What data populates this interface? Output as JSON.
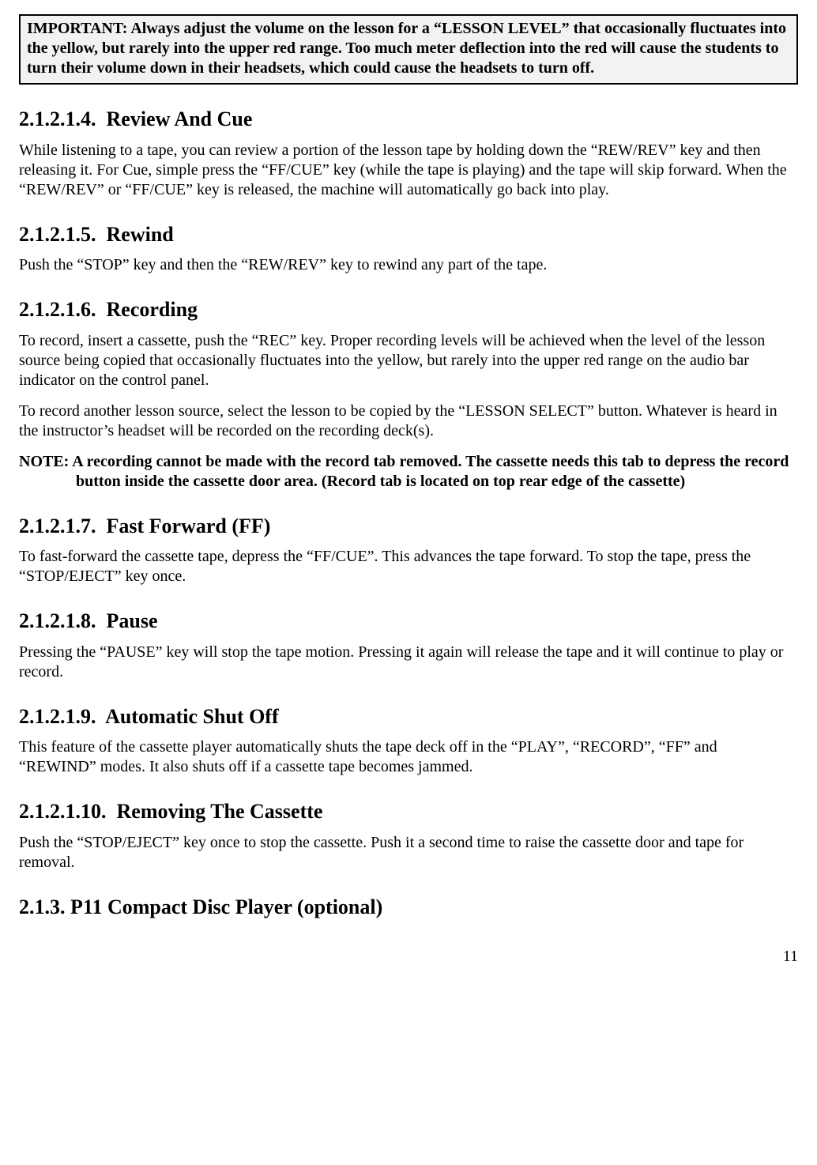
{
  "important_box": "IMPORTANT: Always adjust the volume on the lesson for a “LESSON LEVEL” that occasionally fluctuates into the yellow, but rarely into the upper red range. Too much meter deflection into the red will cause the students to turn their volume down in their headsets, which could cause the headsets to turn off.",
  "sections": {
    "review_cue": {
      "title": "2.1.2.1.4.  Review And Cue",
      "p1": "While listening to a tape, you can review a portion of the lesson tape by holding down the “REW/REV” key and then releasing it. For Cue, simple press the “FF/CUE” key (while the tape is playing) and the tape will skip forward. When the “REW/REV” or “FF/CUE” key is released, the machine will automatically go back into play."
    },
    "rewind": {
      "title": "2.1.2.1.5.  Rewind",
      "p1": "Push the “STOP” key and then the “REW/REV” key to rewind any part of the tape."
    },
    "recording": {
      "title": "2.1.2.1.6.  Recording",
      "p1": "To record, insert a cassette, push the “REC” key. Proper recording levels will be achieved when the level of the lesson source being copied that occasionally fluctuates into the yellow, but rarely into the upper red range on the audio bar indicator on the control panel.",
      "p2": "To record another lesson source, select the lesson to be copied by the “LESSON SELECT” button. Whatever is heard in the instructor’s headset will be recorded on the recording deck(s).",
      "note": "NOTE: A recording cannot be made with the record tab removed. The cassette needs this tab to depress the record button inside the cassette door area. (Record tab is located on top rear edge of the cassette)"
    },
    "ff": {
      "title": "2.1.2.1.7.  Fast Forward (FF)",
      "p1": "To fast-forward the cassette tape, depress the “FF/CUE”. This advances the tape forward. To stop the tape, press the “STOP/EJECT” key once."
    },
    "pause": {
      "title": "2.1.2.1.8.  Pause",
      "p1": "Pressing the “PAUSE” key will stop the tape motion. Pressing it again will release the tape and it will continue to play or record."
    },
    "auto_off": {
      "title": "2.1.2.1.9.  Automatic Shut Off",
      "p1": "This feature of the cassette player automatically shuts the tape deck off in the “PLAY”, “RECORD”, “FF” and “REWIND” modes. It also shuts off if a cassette tape becomes jammed."
    },
    "remove": {
      "title": "2.1.2.1.10.  Removing The Cassette",
      "p1": "Push the “STOP/EJECT” key once to stop the cassette. Push it a second time to raise the cassette door and tape for removal."
    },
    "cd": {
      "title": "2.1.3. P11 Compact Disc Player (optional)"
    }
  },
  "page_number": "11"
}
